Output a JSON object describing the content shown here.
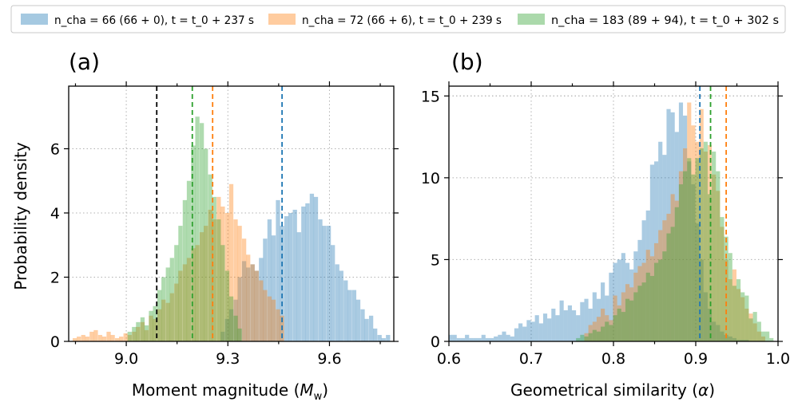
{
  "chart_data": [
    {
      "type": "histogram",
      "panel_label": "(a)",
      "xlabel": "Moment magnitude (M_w)",
      "ylabel": "Probability density",
      "xlim": [
        8.83,
        9.79
      ],
      "ylim": [
        0,
        7.95
      ],
      "xticks": [
        9.0,
        9.3,
        9.6
      ],
      "xtick_labels": [
        "9.0",
        "9.3",
        "9.6"
      ],
      "yticks": [
        0,
        2,
        4,
        6
      ],
      "ytick_labels": [
        "0",
        "2",
        "4",
        "6"
      ],
      "grid": true,
      "bin_width": 0.0125,
      "series": [
        {
          "color": "#1f77b4",
          "x": [
            9.285,
            9.298,
            9.31,
            9.323,
            9.335,
            9.348,
            9.36,
            9.373,
            9.385,
            9.398,
            9.41,
            9.423,
            9.435,
            9.448,
            9.46,
            9.473,
            9.485,
            9.498,
            9.51,
            9.523,
            9.535,
            9.548,
            9.56,
            9.573,
            9.585,
            9.598,
            9.61,
            9.623,
            9.635,
            9.648,
            9.66,
            9.673,
            9.685,
            9.698,
            9.71,
            9.723,
            9.735,
            9.748,
            9.76,
            9.773
          ],
          "y": [
            0.3,
            0.7,
            1.0,
            1.3,
            2.0,
            2.5,
            2.3,
            2.4,
            2.2,
            2.6,
            3.2,
            3.8,
            3.3,
            4.4,
            3.6,
            3.9,
            4.0,
            4.1,
            3.4,
            4.2,
            4.3,
            4.6,
            4.5,
            3.8,
            3.6,
            3.6,
            3.0,
            2.4,
            2.2,
            1.9,
            1.6,
            1.6,
            1.3,
            1.0,
            0.7,
            0.8,
            0.4,
            0.2,
            0.1,
            0.2
          ]
        },
        {
          "color": "#ff7f0e",
          "x": [
            8.848,
            8.86,
            8.873,
            8.885,
            8.898,
            8.91,
            8.923,
            8.935,
            8.948,
            8.96,
            8.973,
            8.985,
            8.998,
            9.01,
            9.023,
            9.035,
            9.048,
            9.06,
            9.073,
            9.085,
            9.098,
            9.11,
            9.123,
            9.135,
            9.148,
            9.16,
            9.173,
            9.185,
            9.198,
            9.21,
            9.223,
            9.235,
            9.248,
            9.26,
            9.273,
            9.285,
            9.298,
            9.31,
            9.323,
            9.335,
            9.348,
            9.36,
            9.373,
            9.385,
            9.398,
            9.41,
            9.423,
            9.435,
            9.448,
            9.46
          ],
          "y": [
            0.1,
            0.15,
            0.2,
            0.15,
            0.3,
            0.35,
            0.2,
            0.15,
            0.3,
            0.2,
            0.1,
            0.15,
            0.25,
            0.2,
            0.3,
            0.45,
            0.6,
            0.35,
            0.8,
            0.7,
            1.0,
            1.3,
            1.2,
            1.5,
            1.8,
            2.2,
            2.4,
            2.6,
            2.9,
            3.0,
            3.4,
            3.6,
            4.1,
            3.8,
            4.5,
            4.2,
            4.0,
            4.9,
            3.8,
            3.6,
            3.2,
            2.7,
            2.4,
            2.2,
            1.9,
            1.6,
            1.4,
            1.3,
            1.0,
            0.8
          ]
        },
        {
          "color": "#2ca02c",
          "x": [
            9.01,
            9.023,
            9.035,
            9.048,
            9.06,
            9.073,
            9.085,
            9.098,
            9.11,
            9.123,
            9.135,
            9.148,
            9.16,
            9.173,
            9.185,
            9.198,
            9.21,
            9.223,
            9.235,
            9.248,
            9.26,
            9.273,
            9.285,
            9.298,
            9.31,
            9.323,
            9.335
          ],
          "y": [
            0.3,
            0.45,
            0.6,
            0.75,
            0.5,
            0.95,
            1.1,
            1.6,
            2.0,
            2.3,
            2.6,
            3.0,
            3.6,
            4.4,
            5.0,
            6.1,
            7.0,
            6.8,
            6.0,
            5.2,
            4.5,
            3.8,
            3.0,
            2.2,
            1.4,
            0.8,
            0.4
          ]
        }
      ],
      "vlines": [
        {
          "x": 9.09,
          "color": "#000000",
          "style": "dashed"
        },
        {
          "x": 9.195,
          "color": "#2ca02c",
          "style": "dashed"
        },
        {
          "x": 9.255,
          "color": "#ff7f0e",
          "style": "dashed"
        },
        {
          "x": 9.46,
          "color": "#1f77b4",
          "style": "dashed"
        }
      ]
    },
    {
      "type": "histogram",
      "panel_label": "(b)",
      "xlabel": "Geometrical similarity (α)",
      "ylabel": "",
      "xlim": [
        0.6,
        1.0
      ],
      "ylim": [
        0,
        15.6
      ],
      "xticks": [
        0.6,
        0.7,
        0.8,
        0.9,
        1.0
      ],
      "xtick_labels": [
        "0.6",
        "0.7",
        "0.8",
        "0.9",
        "1.0"
      ],
      "yticks": [
        0,
        5,
        10,
        15
      ],
      "ytick_labels": [
        "0",
        "5",
        "10",
        "15"
      ],
      "hlines": [
        15
      ],
      "grid": true,
      "bin_width": 0.005,
      "series": [
        {
          "color": "#1f77b4",
          "x": [
            0.602,
            0.607,
            0.612,
            0.617,
            0.622,
            0.627,
            0.632,
            0.637,
            0.642,
            0.647,
            0.652,
            0.657,
            0.662,
            0.667,
            0.672,
            0.677,
            0.682,
            0.687,
            0.692,
            0.697,
            0.702,
            0.707,
            0.712,
            0.717,
            0.722,
            0.727,
            0.732,
            0.737,
            0.742,
            0.747,
            0.752,
            0.757,
            0.762,
            0.767,
            0.772,
            0.777,
            0.782,
            0.787,
            0.792,
            0.797,
            0.802,
            0.807,
            0.812,
            0.817,
            0.822,
            0.827,
            0.832,
            0.837,
            0.842,
            0.847,
            0.852,
            0.857,
            0.862,
            0.867,
            0.872,
            0.877,
            0.882,
            0.887,
            0.892,
            0.897,
            0.902,
            0.907,
            0.912,
            0.917,
            0.922,
            0.927,
            0.932,
            0.937,
            0.942,
            0.947,
            0.952,
            0.957,
            0.962
          ],
          "y": [
            0.4,
            0.4,
            0.2,
            0.2,
            0.4,
            0.2,
            0.2,
            0.2,
            0.4,
            0.2,
            0.2,
            0.3,
            0.4,
            0.6,
            0.4,
            0.3,
            0.8,
            1.1,
            0.9,
            1.3,
            1.2,
            1.6,
            1.1,
            1.7,
            1.4,
            2.0,
            1.6,
            2.5,
            1.9,
            2.2,
            1.9,
            1.6,
            2.4,
            2.6,
            2.0,
            3.0,
            2.6,
            3.6,
            2.8,
            4.2,
            4.8,
            5.0,
            5.4,
            4.8,
            4.4,
            5.5,
            6.2,
            7.4,
            8.0,
            10.8,
            11.0,
            12.2,
            11.4,
            14.2,
            14.0,
            12.8,
            14.6,
            13.8,
            11.0,
            9.6,
            7.2,
            5.0,
            3.0,
            2.0,
            1.2,
            1.0,
            0.6,
            0.4,
            0.3,
            0.2,
            0.1,
            0.1,
            0.1
          ]
        },
        {
          "color": "#ff7f0e",
          "x": [
            0.767,
            0.772,
            0.777,
            0.782,
            0.787,
            0.792,
            0.797,
            0.802,
            0.807,
            0.812,
            0.817,
            0.822,
            0.827,
            0.832,
            0.837,
            0.842,
            0.847,
            0.852,
            0.857,
            0.862,
            0.867,
            0.872,
            0.877,
            0.882,
            0.887,
            0.892,
            0.897,
            0.902,
            0.907,
            0.912,
            0.917,
            0.922,
            0.927,
            0.932,
            0.937,
            0.942,
            0.947,
            0.952,
            0.957,
            0.962,
            0.967,
            0.972,
            0.977,
            0.982
          ],
          "y": [
            0.5,
            1.0,
            1.2,
            1.5,
            2.0,
            1.6,
            1.3,
            2.8,
            2.2,
            3.0,
            3.5,
            3.3,
            4.2,
            4.6,
            4.8,
            5.6,
            5.2,
            6.0,
            6.8,
            7.4,
            7.8,
            9.0,
            8.6,
            10.4,
            11.8,
            14.6,
            13.2,
            12.2,
            14.2,
            11.6,
            12.0,
            10.2,
            9.2,
            7.0,
            5.0,
            3.8,
            4.4,
            3.2,
            2.7,
            2.0,
            1.7,
            1.1,
            0.6,
            0.3
          ]
        },
        {
          "color": "#2ca02c",
          "x": [
            0.757,
            0.762,
            0.767,
            0.772,
            0.777,
            0.782,
            0.787,
            0.792,
            0.797,
            0.802,
            0.807,
            0.812,
            0.817,
            0.822,
            0.827,
            0.832,
            0.837,
            0.842,
            0.847,
            0.852,
            0.857,
            0.862,
            0.867,
            0.872,
            0.877,
            0.882,
            0.887,
            0.892,
            0.897,
            0.902,
            0.907,
            0.912,
            0.917,
            0.922,
            0.927,
            0.932,
            0.937,
            0.942,
            0.947,
            0.952,
            0.957,
            0.962,
            0.967,
            0.972,
            0.977,
            0.982,
            0.987,
            0.992
          ],
          "y": [
            0.2,
            0.4,
            0.3,
            0.5,
            0.7,
            0.6,
            0.9,
            1.2,
            1.0,
            1.6,
            2.0,
            1.8,
            2.6,
            2.5,
            3.0,
            3.4,
            3.6,
            4.2,
            4.0,
            4.8,
            5.0,
            5.5,
            6.6,
            7.0,
            8.2,
            9.6,
            10.4,
            11.2,
            10.2,
            11.2,
            11.8,
            12.2,
            9.0,
            11.6,
            10.4,
            7.6,
            6.4,
            5.4,
            3.4,
            3.8,
            3.0,
            2.8,
            1.4,
            1.8,
            1.2,
            0.6,
            0.6,
            0.2
          ]
        }
      ],
      "vlines": [
        {
          "x": 0.905,
          "color": "#1f77b4",
          "style": "dashed"
        },
        {
          "x": 0.918,
          "color": "#2ca02c",
          "style": "dashed"
        },
        {
          "x": 0.937,
          "color": "#ff7f0e",
          "style": "dashed"
        }
      ]
    }
  ],
  "legend": {
    "placement": "top",
    "entries": [
      {
        "color": "#1f77b4",
        "label": "n_cha = 66 (66 + 0), t = t_0 + 237 s"
      },
      {
        "color": "#ff7f0e",
        "label": "n_cha = 72 (66 + 6), t = t_0 + 239 s"
      },
      {
        "color": "#2ca02c",
        "label": "n_cha = 183 (89 + 94), t = t_0 + 302 s"
      }
    ]
  }
}
